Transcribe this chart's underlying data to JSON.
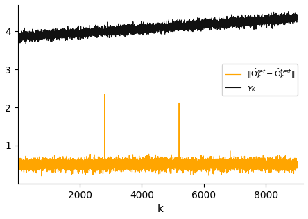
{
  "n_points": 9000,
  "change_points": [
    2800,
    5200
  ],
  "gamma_start": 3.85,
  "gamma_end": 4.35,
  "gamma_noise_std": 0.06,
  "orange_base": 0.5,
  "orange_noise_std": 0.08,
  "orange_spike_height_1": 2.35,
  "orange_spike_height_2": 2.12,
  "orange_spike_idx_1": 2800,
  "orange_spike_idx_2": 5200,
  "orange_color": "#FFA500",
  "black_color": "#111111",
  "xlabel": "k",
  "xlim": [
    0,
    9200
  ],
  "ylim": [
    0,
    4.7
  ],
  "yticks": [
    1,
    2,
    3,
    4
  ],
  "xticks": [
    2000,
    4000,
    6000,
    8000
  ],
  "legend_label_orange": "$\\|\\hat{\\Theta}_k^{ref} - \\hat{\\Theta}_k^{test}\\|$",
  "legend_label_black": "$\\gamma_k$",
  "seed": 42
}
